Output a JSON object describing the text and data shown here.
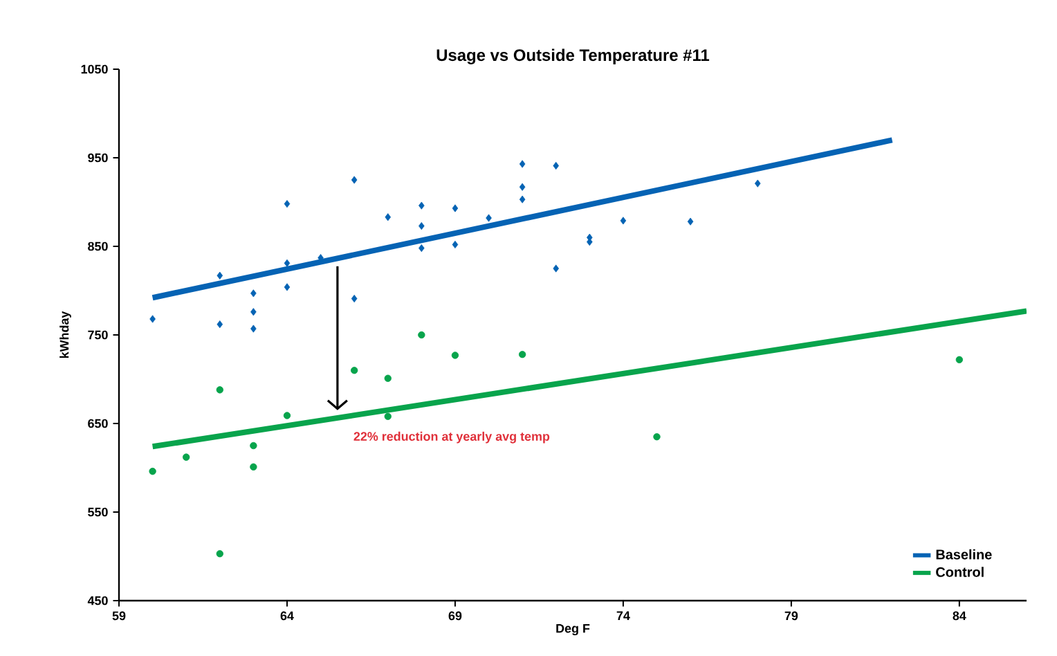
{
  "chart_data": {
    "type": "scatter",
    "title": "Usage vs Outside Temperature #11",
    "xlabel": "Deg F",
    "ylabel": "kWhday",
    "xlim": [
      59,
      86
    ],
    "ylim": [
      450,
      1050
    ],
    "xticks": [
      59,
      64,
      69,
      74,
      79,
      84
    ],
    "yticks": [
      450,
      550,
      650,
      750,
      850,
      950,
      1050
    ],
    "grid": false,
    "legend": "bottom right",
    "annotations": [
      {
        "text": "22% reduction at yearly avg temp",
        "x": 65.5,
        "y": 665
      }
    ],
    "series": [
      {
        "marker": "diamond",
        "color": "#0563b4",
        "x": [
          60,
          62,
          62,
          63,
          63,
          63,
          64,
          64,
          64,
          65,
          66,
          66,
          67,
          68,
          68,
          68,
          69,
          69,
          70,
          71,
          71,
          71,
          72,
          72,
          73,
          73,
          74,
          76,
          78
        ],
        "values": [
          768,
          817,
          762,
          797,
          776,
          757,
          898,
          831,
          804,
          837,
          925,
          791,
          883,
          896,
          873,
          848,
          893,
          852,
          882,
          943,
          917,
          903,
          941,
          825,
          860,
          855,
          879,
          878,
          921
        ]
      },
      {
        "marker": "circle",
        "color": "#08a44c",
        "x": [
          60,
          61,
          62,
          62,
          63,
          63,
          64,
          66,
          67,
          67,
          68,
          69,
          71,
          75,
          84
        ],
        "values": [
          596,
          612,
          688,
          503,
          625,
          601,
          659,
          710,
          701,
          658,
          750,
          727,
          728,
          635,
          722
        ]
      },
      {
        "name": "Baseline",
        "type": "line",
        "marker": "none",
        "color": "#0563b4",
        "x": [
          60,
          82
        ],
        "values": [
          792,
          970
        ]
      },
      {
        "name": "Control",
        "type": "line",
        "marker": "none",
        "color": "#08a44c",
        "x": [
          60,
          86
        ],
        "values": [
          624,
          777
        ]
      }
    ]
  }
}
